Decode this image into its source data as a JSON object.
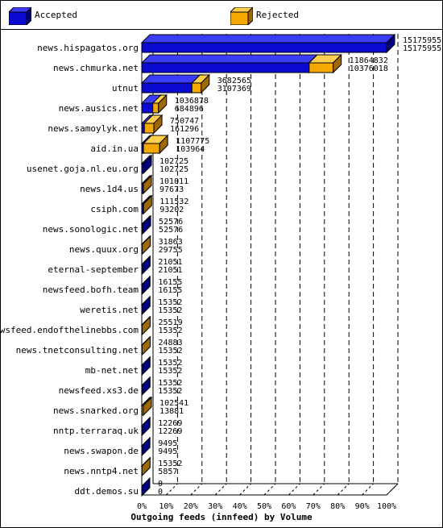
{
  "legend": {
    "accepted": "Accepted",
    "rejected": "Rejected"
  },
  "colors": {
    "accepted": "#0a0ad0",
    "accepted_side": "#000080",
    "accepted_top": "#3c3cff",
    "rejected": "#f5a800",
    "rejected_side": "#a06800",
    "rejected_top": "#ffd050"
  },
  "chart_data": {
    "type": "bar",
    "orientation": "horizontal",
    "title": "",
    "xlabel": "Outgoing feeds (innfeed) by Volume",
    "ylabel": "",
    "xlim": [
      0,
      100
    ],
    "x_ticks": [
      "0%",
      "10%",
      "20%",
      "30%",
      "40%",
      "50%",
      "60%",
      "70%",
      "80%",
      "90%",
      "100%"
    ],
    "grid": true,
    "legend_position": "top",
    "categories": [
      "news.hispagatos.org",
      "news.chmurka.net",
      "utnut",
      "news.ausics.net",
      "news.samoylyk.net",
      "aid.in.ua",
      "usenet.goja.nl.eu.org",
      "news.1d4.us",
      "csiph.com",
      "news.sonologic.net",
      "news.quux.org",
      "eternal-september",
      "newsfeed.bofh.team",
      "weretis.net",
      "newsfeed.endofthelinebbs.com",
      "news.tnetconsulting.net",
      "mb-net.net",
      "newsfeed.xs3.de",
      "news.snarked.org",
      "nntp.terraraq.uk",
      "news.swapon.de",
      "news.nntp4.net",
      "ddt.demos.su"
    ],
    "series": [
      {
        "name": "Accepted",
        "values": [
          15175955,
          10376018,
          3107369,
          684896,
          161296,
          103964,
          102725,
          97673,
          93202,
          52576,
          29755,
          21051,
          16155,
          15352,
          15352,
          15352,
          15352,
          15352,
          13881,
          12269,
          9495,
          5857,
          0
        ]
      },
      {
        "name": "Rejected",
        "values": [
          15175955,
          11864832,
          3682565,
          1036878,
          750747,
          1107775,
          102725,
          101011,
          111532,
          52576,
          31863,
          21051,
          16155,
          15352,
          25519,
          24883,
          15352,
          15352,
          102541,
          12269,
          9495,
          15352,
          0
        ]
      }
    ]
  }
}
